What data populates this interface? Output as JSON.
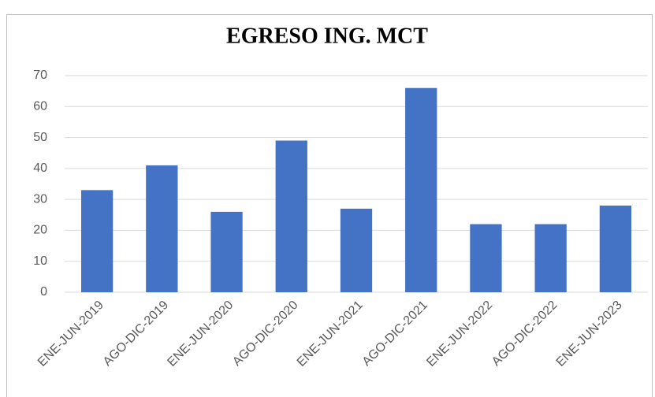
{
  "chart_data": {
    "type": "bar",
    "title": "EGRESO ING. MCT",
    "categories": [
      "ENE-JUN-2019",
      "AGO-DIC-2019",
      "ENE-JUN-2020",
      "AGO-DIC-2020",
      "ENE-JUN-2021",
      "AGO-DIC-2021",
      "ENE-JUN-2022",
      "AGO-DIC-2022",
      "ENE-JUN-2023"
    ],
    "values": [
      33,
      41,
      26,
      49,
      27,
      66,
      22,
      22,
      28
    ],
    "color": "#4472c4",
    "ylim": [
      0,
      70
    ],
    "yticks": [
      0,
      10,
      20,
      30,
      40,
      50,
      60,
      70
    ],
    "grid": true
  }
}
